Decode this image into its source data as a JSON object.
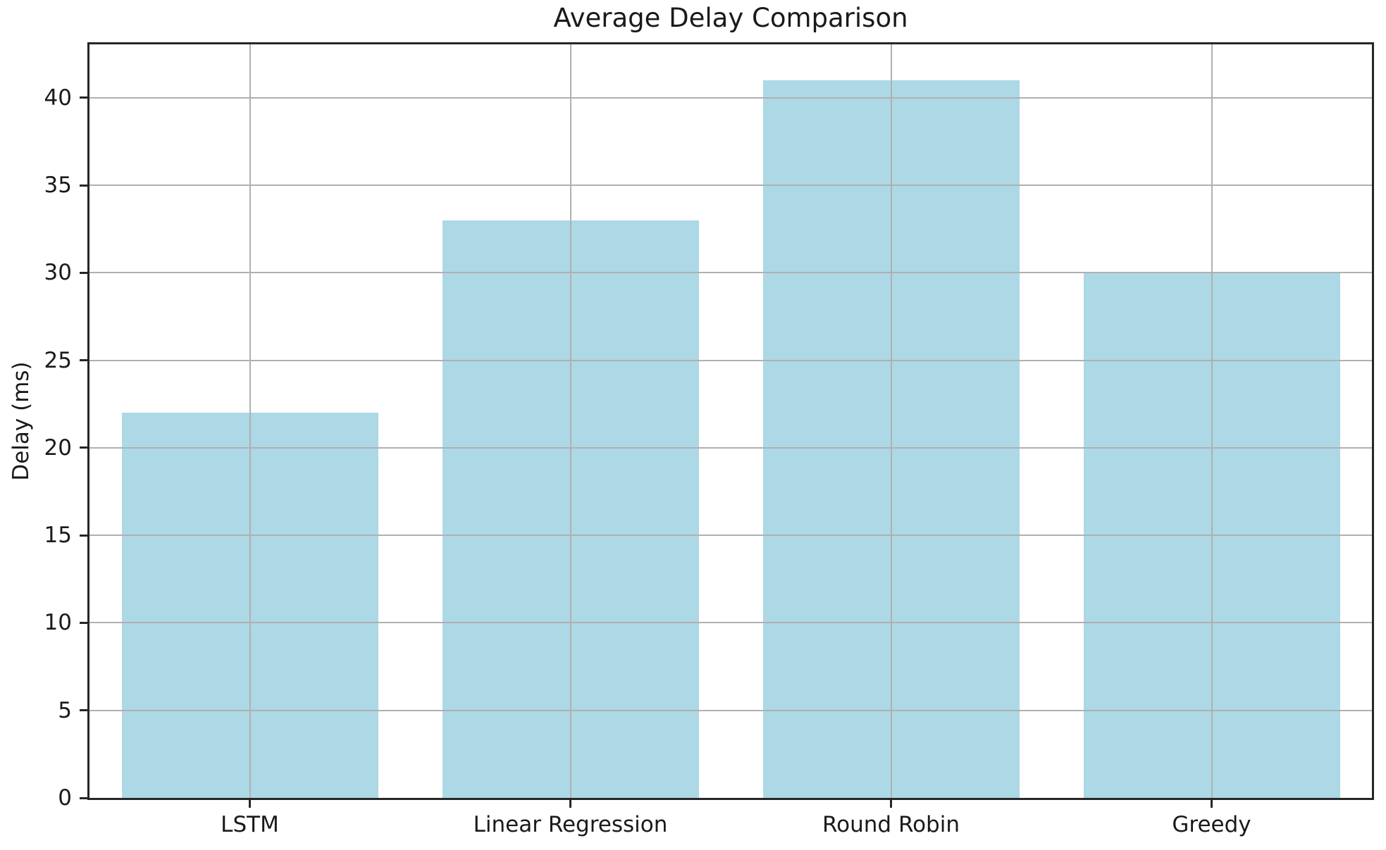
{
  "chart_data": {
    "type": "bar",
    "title": "Average Delay Comparison",
    "ylabel": "Delay (ms)",
    "xlabel": "",
    "categories": [
      "LSTM",
      "Linear Regression",
      "Round Robin",
      "Greedy"
    ],
    "values": [
      22,
      33,
      41,
      30
    ],
    "yticks": [
      0,
      5,
      10,
      15,
      20,
      25,
      30,
      35,
      40
    ],
    "ylim": [
      0,
      43.05
    ],
    "bar_width_fraction": 0.8,
    "grid": "both",
    "grid_on_top_of_bars": true,
    "legend_position": "none",
    "colors": {
      "bar_fill": "#ADD8E6",
      "gridline": "#B0B0B0",
      "spine": "#262626",
      "text": "#1a1a1a",
      "background": "#ffffff"
    }
  }
}
